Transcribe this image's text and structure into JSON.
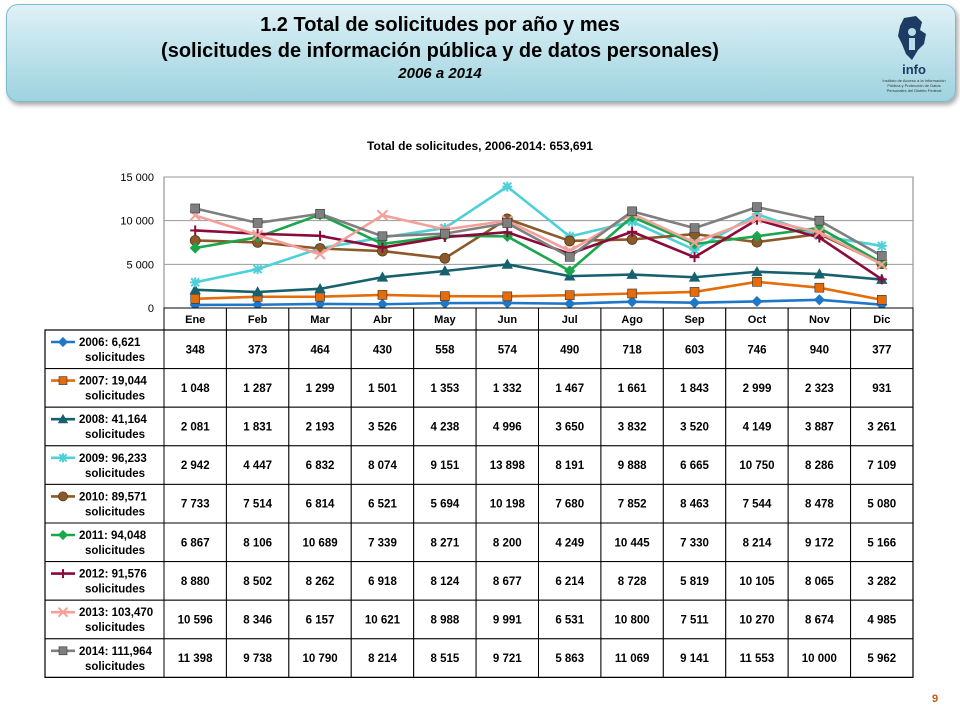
{
  "header": {
    "title_line1": "1.2 Total de solicitudes por año y mes",
    "title_line2": "(solicitudes de información pública y de datos personales)",
    "subtitle": "2006 a 2014",
    "logo_text": "info",
    "logo_small": "Instituto de Acceso a la Información Pública y Protección de Datos Personales del Distrito Federal"
  },
  "page_number": "9",
  "chart_data": {
    "type": "line",
    "title": "Total de solicitudes, 2006-2014: 653,691",
    "categories": [
      "Ene",
      "Feb",
      "Mar",
      "Abr",
      "May",
      "Jun",
      "Jul",
      "Ago",
      "Sep",
      "Oct",
      "Nov",
      "Dic"
    ],
    "ylim": [
      0,
      15000
    ],
    "yticks": [
      0,
      5000,
      10000,
      15000
    ],
    "ytick_labels": [
      "0",
      "5 000",
      "10 000",
      "15 000"
    ],
    "grid": true,
    "legend": "data-table",
    "series": [
      {
        "name_line1": "2006: 6,621",
        "name_line2": "solicitudes",
        "color": "#1f77c9",
        "marker": "diamond",
        "values": [
          348,
          373,
          464,
          430,
          558,
          574,
          490,
          718,
          603,
          746,
          940,
          377
        ],
        "labels": [
          "348",
          "373",
          "464",
          "430",
          "558",
          "574",
          "490",
          "718",
          "603",
          "746",
          "940",
          "377"
        ]
      },
      {
        "name_line1": "2007: 19,044",
        "name_line2": "solicitudes",
        "color": "#e46c0a",
        "marker": "square",
        "values": [
          1048,
          1287,
          1299,
          1501,
          1353,
          1332,
          1467,
          1661,
          1843,
          2999,
          2323,
          931
        ],
        "labels": [
          "1 048",
          "1 287",
          "1 299",
          "1 501",
          "1 353",
          "1 332",
          "1 467",
          "1 661",
          "1 843",
          "2 999",
          "2 323",
          "931"
        ]
      },
      {
        "name_line1": "2008: 41,164",
        "name_line2": "solicitudes",
        "color": "#17616e",
        "marker": "triangle",
        "values": [
          2081,
          1831,
          2193,
          3526,
          4238,
          4996,
          3650,
          3832,
          3520,
          4149,
          3887,
          3261
        ],
        "labels": [
          "2 081",
          "1 831",
          "2 193",
          "3 526",
          "4 238",
          "4 996",
          "3 650",
          "3 832",
          "3 520",
          "4 149",
          "3 887",
          "3 261"
        ]
      },
      {
        "name_line1": "2009: 96,233",
        "name_line2": "solicitudes",
        "color": "#4dd0d8",
        "marker": "star",
        "values": [
          2942,
          4447,
          6832,
          8074,
          9151,
          13898,
          8191,
          9888,
          6665,
          10750,
          8286,
          7109
        ],
        "labels": [
          "2 942",
          "4 447",
          "6 832",
          "8 074",
          "9 151",
          "13 898",
          "8 191",
          "9 888",
          "6 665",
          "10 750",
          "8 286",
          "7 109"
        ]
      },
      {
        "name_line1": "2010: 89,571",
        "name_line2": "solicitudes",
        "color": "#8b5a2b",
        "marker": "circle",
        "values": [
          7733,
          7514,
          6814,
          6521,
          5694,
          10198,
          7680,
          7852,
          8463,
          7544,
          8478,
          5080
        ],
        "labels": [
          "7 733",
          "7 514",
          "6 814",
          "6 521",
          "5 694",
          "10 198",
          "7 680",
          "7 852",
          "8 463",
          "7 544",
          "8 478",
          "5 080"
        ]
      },
      {
        "name_line1": "2011: 94,048",
        "name_line2": "solicitudes",
        "color": "#1aa64a",
        "marker": "diamond",
        "values": [
          6867,
          8106,
          10689,
          7339,
          8271,
          8200,
          4249,
          10445,
          7330,
          8214,
          9172,
          5166
        ],
        "labels": [
          "6 867",
          "8 106",
          "10 689",
          "7 339",
          "8 271",
          "8 200",
          "4 249",
          "10 445",
          "7 330",
          "8 214",
          "9 172",
          "5 166"
        ]
      },
      {
        "name_line1": "2012: 91,576",
        "name_line2": "solicitudes",
        "color": "#8b0a3a",
        "marker": "plus",
        "values": [
          8880,
          8502,
          8262,
          6918,
          8124,
          8677,
          6214,
          8728,
          5819,
          10105,
          8065,
          3282
        ],
        "labels": [
          "8 880",
          "8 502",
          "8 262",
          "6 918",
          "8 124",
          "8 677",
          "6 214",
          "8 728",
          "5 819",
          "10 105",
          "8 065",
          "3 282"
        ]
      },
      {
        "name_line1": "2013: 103,470",
        "name_line2": "solicitudes",
        "color": "#f4a09a",
        "marker": "x",
        "values": [
          10596,
          8346,
          6157,
          10621,
          8988,
          9991,
          6531,
          10800,
          7511,
          10270,
          8674,
          4985
        ],
        "labels": [
          "10 596",
          "8 346",
          "6 157",
          "10 621",
          "8 988",
          "9 991",
          "6 531",
          "10 800",
          "7 511",
          "10 270",
          "8 674",
          "4 985"
        ]
      },
      {
        "name_line1": "2014: 111,964",
        "name_line2": "solicitudes",
        "color": "#7f7f7f",
        "marker": "square",
        "values": [
          11398,
          9738,
          10790,
          8214,
          8515,
          9721,
          5863,
          11069,
          9141,
          11553,
          10000,
          5962
        ],
        "labels": [
          "11 398",
          "9 738",
          "10 790",
          "8 214",
          "8 515",
          "9 721",
          "5 863",
          "11 069",
          "9 141",
          "11 553",
          "10 000",
          "5 962"
        ]
      }
    ]
  }
}
